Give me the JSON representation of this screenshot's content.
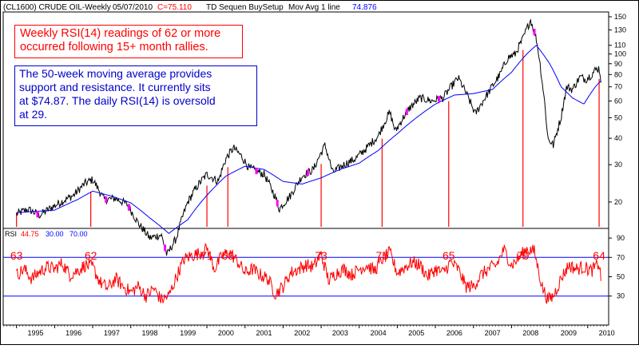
{
  "header": {
    "symbol": "(CL1600)  CRUDE OIL-Weekly",
    "date": "05/07/2010",
    "close_label": "C=75.110",
    "study": "TD Sequen BuySetup",
    "ma_label": "Mov Avg 1 line",
    "ma_value": "74.876"
  },
  "annotations": {
    "rsi_note_line1": "Weekly RSI(14) readings of 62 or more",
    "rsi_note_line2": "occurred following 15+ month rallies.",
    "ma_note_line1": "The 50-week moving average provides",
    "ma_note_line2": "support and resistance.  It currently sits",
    "ma_note_line3": "at $74.87.  The daily RSI(14) is oversold",
    "ma_note_line4": "at 29."
  },
  "rsi_legend": {
    "label": "RSI",
    "value": "44.75",
    "lower": "30.00",
    "upper": "70.00"
  },
  "colors": {
    "price": "#000000",
    "ma": "#0000ff",
    "rsi": "#ff0000",
    "marker": "#ff0000",
    "setup": "#ff00ff",
    "annotation_text": "#ff0000",
    "annotation2_text": "#0000cc"
  },
  "chart_data": [
    {
      "type": "line",
      "name": "price",
      "y_scale": "log",
      "ylim": [
        15,
        158
      ],
      "y_ticks": [
        150,
        130,
        110,
        100,
        90,
        80,
        70,
        60,
        50,
        40,
        30,
        20
      ],
      "x_ticks": [
        "1995",
        "1996",
        "1997",
        "1998",
        "1999",
        "2000",
        "2001",
        "2002",
        "2003",
        "2004",
        "2005",
        "2006",
        "2007",
        "2008",
        "2009",
        "2010"
      ],
      "price_keypoints": [
        [
          1995.0,
          17.5
        ],
        [
          1995.3,
          18.5
        ],
        [
          1995.6,
          17.3
        ],
        [
          1996.0,
          19.2
        ],
        [
          1996.5,
          21.5
        ],
        [
          1996.8,
          24.5
        ],
        [
          1997.0,
          25.5
        ],
        [
          1997.3,
          20.5
        ],
        [
          1997.6,
          20.8
        ],
        [
          1997.9,
          19.5
        ],
        [
          1998.2,
          15.8
        ],
        [
          1998.5,
          13.5
        ],
        [
          1998.8,
          14.0
        ],
        [
          1998.95,
          11.2
        ],
        [
          1999.2,
          13.5
        ],
        [
          1999.5,
          20.0
        ],
        [
          1999.8,
          24.5
        ],
        [
          2000.0,
          27.0
        ],
        [
          2000.3,
          25.0
        ],
        [
          2000.5,
          32.0
        ],
        [
          2000.7,
          36.0
        ],
        [
          2000.9,
          33.0
        ],
        [
          2001.1,
          29.0
        ],
        [
          2001.5,
          27.0
        ],
        [
          2001.8,
          21.0
        ],
        [
          2001.9,
          18.5
        ],
        [
          2002.2,
          21.5
        ],
        [
          2002.5,
          26.5
        ],
        [
          2002.8,
          28.5
        ],
        [
          2003.1,
          37.0
        ],
        [
          2003.3,
          27.5
        ],
        [
          2003.6,
          30.0
        ],
        [
          2003.9,
          32.0
        ],
        [
          2004.2,
          36.0
        ],
        [
          2004.5,
          41.0
        ],
        [
          2004.8,
          53.0
        ],
        [
          2004.95,
          43.0
        ],
        [
          2005.3,
          55.0
        ],
        [
          2005.6,
          62.0
        ],
        [
          2005.9,
          60.0
        ],
        [
          2006.2,
          62.0
        ],
        [
          2006.6,
          77.0
        ],
        [
          2006.9,
          60.0
        ],
        [
          2007.05,
          52.0
        ],
        [
          2007.4,
          66.0
        ],
        [
          2007.7,
          80.0
        ],
        [
          2007.9,
          96.0
        ],
        [
          2008.1,
          100.0
        ],
        [
          2008.3,
          118.0
        ],
        [
          2008.5,
          145.0
        ],
        [
          2008.65,
          118.0
        ],
        [
          2008.8,
          75.0
        ],
        [
          2008.95,
          40.0
        ],
        [
          2009.1,
          37.0
        ],
        [
          2009.3,
          50.0
        ],
        [
          2009.45,
          70.0
        ],
        [
          2009.6,
          68.0
        ],
        [
          2009.8,
          78.0
        ],
        [
          2009.95,
          76.0
        ],
        [
          2010.1,
          80.0
        ],
        [
          2010.2,
          84.0
        ],
        [
          2010.3,
          86.0
        ],
        [
          2010.35,
          75.1
        ]
      ],
      "ma_keypoints": [
        [
          1995.0,
          17.8
        ],
        [
          1996.0,
          18.3
        ],
        [
          1996.6,
          20.5
        ],
        [
          1997.0,
          22.5
        ],
        [
          1997.5,
          21.3
        ],
        [
          1998.0,
          19.8
        ],
        [
          1998.5,
          16.8
        ],
        [
          1999.0,
          14.2
        ],
        [
          1999.5,
          16.5
        ],
        [
          2000.0,
          21.5
        ],
        [
          2000.5,
          26.5
        ],
        [
          2001.0,
          29.5
        ],
        [
          2001.5,
          28.5
        ],
        [
          2002.0,
          25.0
        ],
        [
          2002.5,
          24.3
        ],
        [
          2003.0,
          26.0
        ],
        [
          2003.5,
          28.5
        ],
        [
          2004.0,
          30.5
        ],
        [
          2004.5,
          35.0
        ],
        [
          2005.0,
          42.0
        ],
        [
          2005.5,
          50.0
        ],
        [
          2006.0,
          58.0
        ],
        [
          2006.5,
          64.0
        ],
        [
          2007.0,
          65.0
        ],
        [
          2007.5,
          68.0
        ],
        [
          2008.0,
          82.0
        ],
        [
          2008.4,
          100.0
        ],
        [
          2008.65,
          110.0
        ],
        [
          2009.0,
          90.0
        ],
        [
          2009.3,
          70.0
        ],
        [
          2009.6,
          62.0
        ],
        [
          2009.9,
          58.0
        ],
        [
          2010.2,
          70.0
        ],
        [
          2010.35,
          74.876
        ]
      ],
      "setup_markers": [
        1995.55,
        1997.35,
        1997.95,
        1998.9,
        2001.3,
        2001.85,
        2002.65,
        2005.25,
        2006.1,
        2008.6
      ]
    },
    {
      "type": "line",
      "name": "RSI",
      "ylim": [
        0,
        100
      ],
      "y_ticks": [
        90,
        70,
        50,
        30
      ],
      "reference_lines": [
        70,
        30
      ],
      "rsi_keypoints": [
        [
          1995.0,
          52
        ],
        [
          1995.2,
          58
        ],
        [
          1995.4,
          48
        ],
        [
          1995.6,
          55
        ],
        [
          1995.8,
          60
        ],
        [
          1996.0,
          58
        ],
        [
          1996.2,
          64
        ],
        [
          1996.4,
          52
        ],
        [
          1996.6,
          56
        ],
        [
          1996.8,
          62
        ],
        [
          1997.0,
          60
        ],
        [
          1997.2,
          44
        ],
        [
          1997.4,
          38
        ],
        [
          1997.6,
          48
        ],
        [
          1997.8,
          40
        ],
        [
          1998.0,
          34
        ],
        [
          1998.2,
          40
        ],
        [
          1998.4,
          30
        ],
        [
          1998.6,
          38
        ],
        [
          1998.8,
          26
        ],
        [
          1999.0,
          30
        ],
        [
          1999.2,
          50
        ],
        [
          1999.4,
          68
        ],
        [
          1999.6,
          72
        ],
        [
          1999.8,
          74
        ],
        [
          2000.0,
          80
        ],
        [
          2000.2,
          58
        ],
        [
          2000.4,
          72
        ],
        [
          2000.6,
          75
        ],
        [
          2000.8,
          66
        ],
        [
          2001.0,
          54
        ],
        [
          2001.2,
          58
        ],
        [
          2001.4,
          52
        ],
        [
          2001.6,
          48
        ],
        [
          2001.8,
          32
        ],
        [
          2002.0,
          40
        ],
        [
          2002.2,
          54
        ],
        [
          2002.4,
          58
        ],
        [
          2002.6,
          62
        ],
        [
          2002.8,
          60
        ],
        [
          2003.0,
          73
        ],
        [
          2003.2,
          46
        ],
        [
          2003.4,
          54
        ],
        [
          2003.6,
          58
        ],
        [
          2003.8,
          52
        ],
        [
          2004.0,
          58
        ],
        [
          2004.2,
          62
        ],
        [
          2004.4,
          56
        ],
        [
          2004.6,
          68
        ],
        [
          2004.8,
          75
        ],
        [
          2005.0,
          54
        ],
        [
          2005.2,
          60
        ],
        [
          2005.4,
          65
        ],
        [
          2005.6,
          62
        ],
        [
          2005.8,
          50
        ],
        [
          2006.0,
          58
        ],
        [
          2006.2,
          54
        ],
        [
          2006.4,
          65
        ],
        [
          2006.6,
          58
        ],
        [
          2006.8,
          40
        ],
        [
          2007.0,
          40
        ],
        [
          2007.2,
          52
        ],
        [
          2007.4,
          58
        ],
        [
          2007.6,
          62
        ],
        [
          2007.8,
          78
        ],
        [
          2008.0,
          62
        ],
        [
          2008.2,
          70
        ],
        [
          2008.4,
          79
        ],
        [
          2008.6,
          76
        ],
        [
          2008.8,
          40
        ],
        [
          2008.95,
          26
        ],
        [
          2009.1,
          30
        ],
        [
          2009.3,
          48
        ],
        [
          2009.5,
          62
        ],
        [
          2009.7,
          58
        ],
        [
          2009.9,
          60
        ],
        [
          2010.1,
          56
        ],
        [
          2010.3,
          64
        ],
        [
          2010.35,
          45
        ]
      ],
      "peak_labels": [
        {
          "x": 1995.0,
          "text": "63"
        },
        {
          "x": 1996.95,
          "text": "62"
        },
        {
          "x": 2000.0,
          "text": "71"
        },
        {
          "x": 2000.55,
          "text": "69"
        },
        {
          "x": 2003.0,
          "text": "73"
        },
        {
          "x": 2004.6,
          "text": "75"
        },
        {
          "x": 2006.35,
          "text": "65"
        },
        {
          "x": 2008.3,
          "text": "79"
        },
        {
          "x": 2010.3,
          "text": "64"
        }
      ],
      "signal_lines_x": [
        1995.0,
        1996.95,
        2000.0,
        2000.55,
        2003.0,
        2004.6,
        2006.35,
        2008.3,
        2010.3
      ]
    }
  ]
}
